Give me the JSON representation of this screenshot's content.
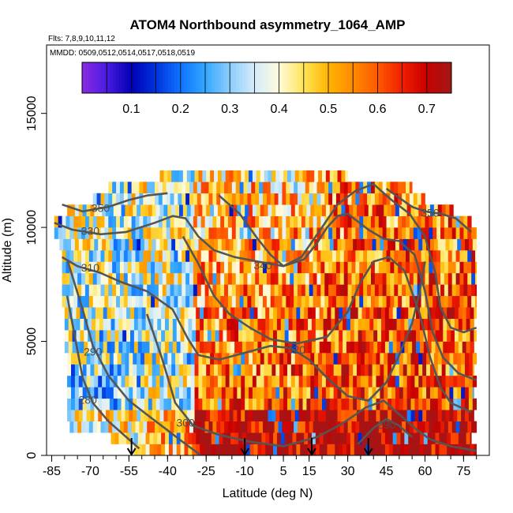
{
  "chart_data": {
    "type": "heatmap",
    "title": "ATOM4 Northbound asymmetry_1064_AMP",
    "flights_text": "Flts: 7,8,9,10,11,12",
    "dates_text": "MMDD: 0509,0512,0514,0517,0518,0519",
    "xlabel": "Latitude (deg N)",
    "ylabel": "Altitude (m)",
    "xlim": [
      -87,
      85
    ],
    "ylim": [
      0,
      18000
    ],
    "x_ticks": [
      -85,
      -70,
      -55,
      -40,
      -25,
      -10,
      5,
      15,
      30,
      45,
      60,
      75
    ],
    "x_tick_labels": [
      "-85",
      "-70",
      "-55",
      "-40",
      "-25",
      "-10",
      "5",
      "15",
      "30",
      "45",
      "60",
      "75"
    ],
    "y_ticks": [
      0,
      5000,
      10000,
      15000
    ],
    "y_tick_labels": [
      "0",
      "5000",
      "10000",
      "15000"
    ],
    "colorbar": {
      "min": 0.0,
      "max": 0.75,
      "ticks": [
        0.1,
        0.2,
        0.3,
        0.4,
        0.5,
        0.6,
        0.7
      ],
      "tick_labels": [
        "0.1",
        "0.2",
        "0.3",
        "0.4",
        "0.5",
        "0.6",
        "0.7"
      ],
      "stops": [
        {
          "v": 0.0,
          "c": "#8a2be2"
        },
        {
          "v": 0.05,
          "c": "#4b1ce0"
        },
        {
          "v": 0.1,
          "c": "#0000b4"
        },
        {
          "v": 0.15,
          "c": "#0033dd"
        },
        {
          "v": 0.2,
          "c": "#1073ff"
        },
        {
          "v": 0.25,
          "c": "#33a7ff"
        },
        {
          "v": 0.3,
          "c": "#8ccdfa"
        },
        {
          "v": 0.35,
          "c": "#d4ecfa"
        },
        {
          "v": 0.4,
          "c": "#fffadc"
        },
        {
          "v": 0.45,
          "c": "#ffe45a"
        },
        {
          "v": 0.5,
          "c": "#ffb400"
        },
        {
          "v": 0.55,
          "c": "#ff8a00"
        },
        {
          "v": 0.6,
          "c": "#ff5a00"
        },
        {
          "v": 0.65,
          "c": "#f01e00"
        },
        {
          "v": 0.7,
          "c": "#c80000"
        },
        {
          "v": 0.75,
          "c": "#a01818"
        }
      ]
    },
    "coverage": [
      {
        "alt": 500,
        "lat_min": -53,
        "lat_max": 80
      },
      {
        "alt": 1000,
        "lat_min": -62,
        "lat_max": 78
      },
      {
        "alt": 1500,
        "lat_min": -78,
        "lat_max": 80
      },
      {
        "alt": 2000,
        "lat_min": -79,
        "lat_max": 79
      },
      {
        "alt": 2500,
        "lat_min": -79,
        "lat_max": 80
      },
      {
        "alt": 3000,
        "lat_min": -79,
        "lat_max": 79
      },
      {
        "alt": 3500,
        "lat_min": -79,
        "lat_max": 80
      },
      {
        "alt": 4000,
        "lat_min": -79,
        "lat_max": 79
      },
      {
        "alt": 4500,
        "lat_min": -79,
        "lat_max": 80
      },
      {
        "alt": 5000,
        "lat_min": -80,
        "lat_max": 79
      },
      {
        "alt": 5500,
        "lat_min": -80,
        "lat_max": 80
      },
      {
        "alt": 6000,
        "lat_min": -80,
        "lat_max": 79
      },
      {
        "alt": 6500,
        "lat_min": -80,
        "lat_max": 80
      },
      {
        "alt": 7000,
        "lat_min": -81,
        "lat_max": 80
      },
      {
        "alt": 7500,
        "lat_min": -81,
        "lat_max": 80
      },
      {
        "alt": 8000,
        "lat_min": -81,
        "lat_max": 80
      },
      {
        "alt": 8500,
        "lat_min": -81,
        "lat_max": 80
      },
      {
        "alt": 9000,
        "lat_min": -81,
        "lat_max": 80
      },
      {
        "alt": 9500,
        "lat_min": -82,
        "lat_max": 80
      },
      {
        "alt": 10000,
        "lat_min": -84,
        "lat_max": 80
      },
      {
        "alt": 10500,
        "lat_min": -84,
        "lat_max": 78
      },
      {
        "alt": 11000,
        "lat_min": -79,
        "lat_max": 71
      },
      {
        "alt": 11500,
        "lat_min": -69,
        "lat_max": 60
      },
      {
        "alt": 12000,
        "lat_min": -63,
        "lat_max": 55
      },
      {
        "alt": 12500,
        "lat_min": -43,
        "lat_max": 30
      }
    ],
    "contours": [
      {
        "level": 280,
        "label": "280",
        "label_at": [
          -71,
          2400
        ],
        "points": [
          [
            -79,
            7000
          ],
          [
            -76,
            5200
          ],
          [
            -73,
            3400
          ],
          [
            -69,
            2300
          ],
          [
            -63,
            1500
          ],
          [
            -56,
            800
          ],
          [
            -51,
            300
          ]
        ]
      },
      {
        "level": 290,
        "label": "290",
        "label_at": [
          -69,
          4500
        ],
        "points": [
          [
            -79,
            8600
          ],
          [
            -73,
            6400
          ],
          [
            -69,
            4800
          ],
          [
            -63,
            3500
          ],
          [
            -55,
            2400
          ],
          [
            -47,
            1700
          ],
          [
            -40,
            1100
          ],
          [
            -33,
            500
          ],
          [
            -27,
            0
          ]
        ]
      },
      {
        "level": 300,
        "label": "300",
        "label_at": [
          -33,
          1400
        ],
        "points": [
          [
            -48,
            6200
          ],
          [
            -42,
            4200
          ],
          [
            -37,
            2300
          ],
          [
            -30,
            1300
          ],
          [
            -20,
            900
          ],
          [
            -8,
            600
          ],
          [
            5,
            400
          ],
          [
            18,
            800
          ],
          [
            28,
            1400
          ],
          [
            37,
            2100
          ],
          [
            44,
            2400
          ],
          [
            50,
            1800
          ],
          [
            56,
            1200
          ],
          [
            62,
            700
          ],
          [
            70,
            400
          ],
          [
            80,
            200
          ]
        ]
      },
      {
        "level": 290,
        "label": "290",
        "label_at": [
          45,
          1300
        ],
        "points": [
          [
            34,
            500
          ],
          [
            40,
            1200
          ],
          [
            45,
            1600
          ],
          [
            50,
            1300
          ],
          [
            55,
            800
          ]
        ]
      },
      {
        "level": 310,
        "label": "310",
        "label_at": [
          -70,
          8200
        ],
        "points": [
          [
            -81,
            8700
          ],
          [
            -75,
            8300
          ],
          [
            -66,
            8000
          ],
          [
            -58,
            7600
          ],
          [
            -48,
            7200
          ],
          [
            -38,
            6400
          ],
          [
            -32,
            5100
          ],
          [
            -28,
            4400
          ],
          [
            -20,
            4200
          ],
          [
            -10,
            4500
          ],
          [
            0,
            4800
          ],
          [
            8,
            4700
          ],
          [
            15,
            4200
          ],
          [
            22,
            3400
          ],
          [
            30,
            2600
          ],
          [
            38,
            2400
          ],
          [
            45,
            3200
          ],
          [
            50,
            4400
          ],
          [
            55,
            5800
          ],
          [
            58,
            7200
          ],
          [
            60,
            8500
          ]
        ]
      },
      {
        "level": 320,
        "label": "320",
        "label_at": [
          10,
          4600
        ],
        "points": [
          [
            -34,
            9600
          ],
          [
            -28,
            8400
          ],
          [
            -22,
            7000
          ],
          [
            -16,
            6200
          ],
          [
            -8,
            5600
          ],
          [
            0,
            5100
          ],
          [
            10,
            4900
          ],
          [
            22,
            5200
          ],
          [
            30,
            6300
          ],
          [
            35,
            7600
          ],
          [
            40,
            8500
          ],
          [
            46,
            8700
          ],
          [
            52,
            8100
          ],
          [
            58,
            6200
          ],
          [
            62,
            4300
          ],
          [
            66,
            3000
          ],
          [
            70,
            2300
          ],
          [
            78,
            1900
          ]
        ]
      },
      {
        "level": 330,
        "label": "330",
        "label_at": [
          -70,
          9800
        ],
        "points": [
          [
            -84,
            10200
          ],
          [
            -77,
            9900
          ],
          [
            -66,
            9700
          ],
          [
            -56,
            9800
          ],
          [
            -45,
            10200
          ],
          [
            -38,
            10500
          ],
          [
            -33,
            10400
          ],
          [
            -28,
            9600
          ],
          [
            -22,
            9000
          ],
          [
            -14,
            8700
          ],
          [
            -5,
            8500
          ],
          [
            5,
            8300
          ],
          [
            13,
            8600
          ],
          [
            18,
            9300
          ],
          [
            22,
            10000
          ],
          [
            26,
            10500
          ],
          [
            30,
            10600
          ],
          [
            38,
            9900
          ],
          [
            44,
            9500
          ],
          [
            50,
            9400
          ],
          [
            56,
            8800
          ],
          [
            60,
            7200
          ],
          [
            63,
            5400
          ],
          [
            67,
            4300
          ],
          [
            73,
            3600
          ],
          [
            80,
            3300
          ]
        ]
      },
      {
        "level": 340,
        "label": "340",
        "label_at": [
          -3,
          8300
        ],
        "points": [
          [
            -20,
            11400
          ],
          [
            -12,
            10600
          ],
          [
            -5,
            9500
          ],
          [
            0,
            8800
          ],
          [
            5,
            8300
          ],
          [
            12,
            8700
          ],
          [
            20,
            10000
          ],
          [
            26,
            11000
          ],
          [
            33,
            11600
          ],
          [
            40,
            11900
          ],
          [
            47,
            11200
          ],
          [
            54,
            10600
          ],
          [
            60,
            9600
          ],
          [
            64,
            8000
          ],
          [
            66,
            6500
          ],
          [
            70,
            5600
          ],
          [
            75,
            5400
          ],
          [
            80,
            5600
          ]
        ]
      },
      {
        "level": 350,
        "label": "350",
        "label_at": [
          -66,
          10800
        ],
        "points": [
          [
            -81,
            11000
          ],
          [
            -73,
            10700
          ],
          [
            -63,
            10900
          ],
          [
            -55,
            11200
          ],
          [
            -48,
            11400
          ],
          [
            -40,
            11500
          ]
        ]
      },
      {
        "level": 350,
        "label": "350",
        "label_at": [
          62,
          10600
        ],
        "points": [
          [
            45,
            11700
          ],
          [
            50,
            11300
          ],
          [
            55,
            10900
          ],
          [
            60,
            10700
          ],
          [
            66,
            10600
          ],
          [
            72,
            10400
          ],
          [
            78,
            9800
          ]
        ]
      }
    ],
    "arrows": [
      {
        "lat": -54
      },
      {
        "lat": -10
      },
      {
        "lat": 16
      },
      {
        "lat": 38
      }
    ]
  }
}
